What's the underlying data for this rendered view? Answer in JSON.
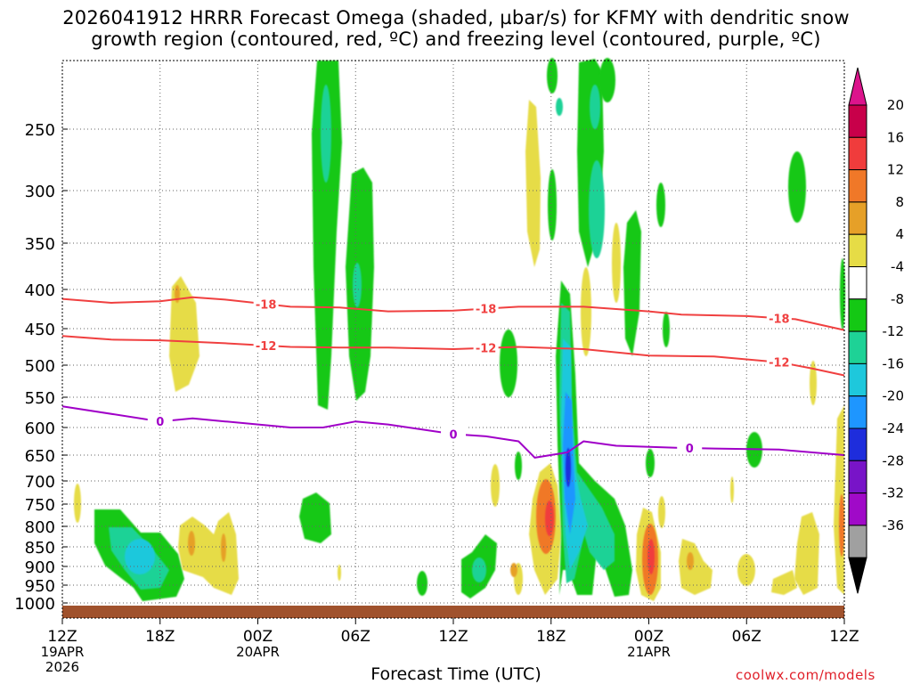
{
  "title": {
    "line1": "2026041912 HRRR Forecast Omega (shaded, µbar/s) for KFMY with dendritic snow",
    "line2": "growth region (contoured, red, ºC) and freezing level (contoured, purple, ºC)"
  },
  "credit": "coolwx.com/models",
  "chart_data": {
    "type": "heatmap",
    "xlabel": "Forecast Time (UTC)",
    "x_unit": "forecast hour",
    "x_range": [
      0,
      48
    ],
    "x_ticks": [
      {
        "hour": 0,
        "label": "12Z",
        "date": "19APR",
        "year": "2026"
      },
      {
        "hour": 6,
        "label": "18Z"
      },
      {
        "hour": 12,
        "label": "00Z",
        "date": "20APR"
      },
      {
        "hour": 18,
        "label": "06Z"
      },
      {
        "hour": 24,
        "label": "12Z"
      },
      {
        "hour": 30,
        "label": "18Z"
      },
      {
        "hour": 36,
        "label": "00Z",
        "date": "21APR"
      },
      {
        "hour": 42,
        "label": "06Z"
      },
      {
        "hour": 48,
        "label": "12Z"
      }
    ],
    "y_unit": "hPa",
    "y_range": [
      1025,
      200
    ],
    "y_ticks": [
      250,
      300,
      350,
      400,
      450,
      500,
      550,
      600,
      650,
      700,
      750,
      800,
      850,
      900,
      950,
      1000
    ],
    "grid": "dotted",
    "colorbar": {
      "labels": [
        "20",
        "16",
        "12",
        "8",
        "4",
        "-4",
        "-8",
        "-12",
        "-16",
        "-20",
        "-24",
        "-28",
        "-32",
        "-36"
      ],
      "colors": [
        "#c8004a",
        "#f03c3c",
        "#f07828",
        "#e6a028",
        "#e6dc46",
        "#ffffff",
        "#14c814",
        "#1ed296",
        "#1ec8dc",
        "#1e96ff",
        "#1e2ddc",
        "#7814c8",
        "#a00ac8",
        "#a0a0a0"
      ],
      "top_color": "#dc148c",
      "bottom_color": "#000000"
    },
    "contours": [
      {
        "label": "-18",
        "color": "#f04040",
        "points": [
          [
            0,
            412
          ],
          [
            3,
            417
          ],
          [
            6,
            415
          ],
          [
            8,
            410
          ],
          [
            10,
            413
          ],
          [
            14,
            422
          ],
          [
            17,
            423
          ],
          [
            20,
            428
          ],
          [
            24,
            427
          ],
          [
            28,
            422
          ],
          [
            32,
            422
          ],
          [
            36,
            428
          ],
          [
            38,
            432
          ],
          [
            42,
            434
          ],
          [
            45,
            438
          ],
          [
            48,
            452
          ]
        ]
      },
      {
        "label": "-12",
        "color": "#f04040",
        "points": [
          [
            0,
            460
          ],
          [
            3,
            465
          ],
          [
            6,
            466
          ],
          [
            8,
            468
          ],
          [
            10,
            470
          ],
          [
            14,
            475
          ],
          [
            17,
            476
          ],
          [
            20,
            476
          ],
          [
            24,
            478
          ],
          [
            28,
            475
          ],
          [
            32,
            478
          ],
          [
            36,
            487
          ],
          [
            40,
            488
          ],
          [
            44,
            496
          ],
          [
            46,
            505
          ],
          [
            48,
            516
          ]
        ]
      },
      {
        "label": "0",
        "color": "#a000c8",
        "points": [
          [
            0,
            565
          ],
          [
            6,
            590
          ],
          [
            8,
            585
          ],
          [
            10,
            590
          ],
          [
            14,
            600
          ],
          [
            16,
            600
          ],
          [
            18,
            590
          ],
          [
            20,
            595
          ],
          [
            24,
            612
          ],
          [
            26,
            616
          ],
          [
            28,
            625
          ],
          [
            29,
            655
          ],
          [
            31,
            645
          ],
          [
            32,
            625
          ],
          [
            34,
            633
          ],
          [
            38,
            637
          ],
          [
            40,
            638
          ],
          [
            44,
            640
          ],
          [
            48,
            650
          ]
        ]
      }
    ],
    "omega_cells": [
      {
        "hour": 2.5,
        "p": 805,
        "v": -8
      },
      {
        "hour": 4.5,
        "p": 860,
        "v": -13
      },
      {
        "hour": 8.5,
        "p": 840,
        "v": 6
      },
      {
        "hour": 10.5,
        "p": 860,
        "v": 6
      },
      {
        "hour": 6.8,
        "p": 410,
        "v": 5
      },
      {
        "hour": 15.9,
        "p": 380,
        "v": -8
      },
      {
        "hour": 15.6,
        "p": 800,
        "v": -8
      },
      {
        "hour": 18.2,
        "p": 400,
        "v": -8
      },
      {
        "hour": 23.1,
        "p": 905,
        "v": -9
      },
      {
        "hour": 29.5,
        "p": 790,
        "v": 13
      },
      {
        "hour": 30.7,
        "p": 580,
        "v": -17
      },
      {
        "hour": 31.0,
        "p": 700,
        "v": -22
      },
      {
        "hour": 33.5,
        "p": 790,
        "v": -12
      },
      {
        "hour": 36.0,
        "p": 870,
        "v": 15
      },
      {
        "hour": 28.3,
        "p": 300,
        "v": 5
      },
      {
        "hour": 31.6,
        "p": 200,
        "v": -8
      },
      {
        "hour": 47.8,
        "p": 750,
        "v": 6
      },
      {
        "hour": 45.3,
        "p": 300,
        "v": -6
      }
    ]
  }
}
